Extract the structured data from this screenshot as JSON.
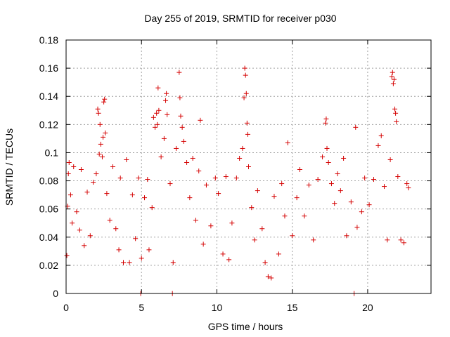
{
  "chart_data": {
    "type": "scatter",
    "title": "Day 255 of 2019, SRMTID for receiver p030",
    "xlabel": "GPS time / hours",
    "ylabel": "SRMTID / TECUs",
    "xlim": [
      0,
      24.2
    ],
    "ylim": [
      0,
      0.18
    ],
    "xticks": [
      0,
      5,
      10,
      15,
      20
    ],
    "xtick_labels": [
      "0",
      "5",
      "10",
      "15",
      "20"
    ],
    "yticks": [
      0,
      0.02,
      0.04,
      0.06,
      0.08,
      0.1,
      0.12,
      0.14,
      0.16,
      0.18
    ],
    "ytick_labels": [
      "0",
      "0.02",
      "0.04",
      "0.06",
      "0.08",
      "0.1",
      "0.12",
      "0.14",
      "0.16",
      "0.18"
    ],
    "grid": true,
    "marker": "+",
    "marker_color": "#d40000",
    "series": [
      {
        "name": "SRMTID",
        "points": [
          [
            0.05,
            0.027
          ],
          [
            0.1,
            0.062
          ],
          [
            0.15,
            0.085
          ],
          [
            0.2,
            0.093
          ],
          [
            0.3,
            0.07
          ],
          [
            0.4,
            0.05
          ],
          [
            0.5,
            0.09
          ],
          [
            0.7,
            0.058
          ],
          [
            0.9,
            0.045
          ],
          [
            1.0,
            0.088
          ],
          [
            1.2,
            0.034
          ],
          [
            1.4,
            0.072
          ],
          [
            1.6,
            0.041
          ],
          [
            1.8,
            0.079
          ],
          [
            2.0,
            0.085
          ],
          [
            2.1,
            0.131
          ],
          [
            2.15,
            0.128
          ],
          [
            2.2,
            0.099
          ],
          [
            2.25,
            0.12
          ],
          [
            2.3,
            0.106
          ],
          [
            2.4,
            0.097
          ],
          [
            2.45,
            0.111
          ],
          [
            2.5,
            0.136
          ],
          [
            2.55,
            0.138
          ],
          [
            2.6,
            0.114
          ],
          [
            2.7,
            0.071
          ],
          [
            2.9,
            0.052
          ],
          [
            3.1,
            0.09
          ],
          [
            3.3,
            0.046
          ],
          [
            3.5,
            0.031
          ],
          [
            3.6,
            0.082
          ],
          [
            3.8,
            0.022
          ],
          [
            4.0,
            0.095
          ],
          [
            4.2,
            0.022
          ],
          [
            4.4,
            0.07
          ],
          [
            4.6,
            0.039
          ],
          [
            4.8,
            0.082
          ],
          [
            4.95,
            0.0
          ],
          [
            5.0,
            0.025
          ],
          [
            5.2,
            0.068
          ],
          [
            5.4,
            0.081
          ],
          [
            5.5,
            0.031
          ],
          [
            5.7,
            0.061
          ],
          [
            5.8,
            0.125
          ],
          [
            5.9,
            0.118
          ],
          [
            6.0,
            0.128
          ],
          [
            6.05,
            0.12
          ],
          [
            6.1,
            0.146
          ],
          [
            6.15,
            0.13
          ],
          [
            6.3,
            0.097
          ],
          [
            6.5,
            0.11
          ],
          [
            6.6,
            0.137
          ],
          [
            6.65,
            0.142
          ],
          [
            6.7,
            0.127
          ],
          [
            6.9,
            0.078
          ],
          [
            7.05,
            0.0
          ],
          [
            7.1,
            0.022
          ],
          [
            7.3,
            0.103
          ],
          [
            7.5,
            0.157
          ],
          [
            7.55,
            0.139
          ],
          [
            7.6,
            0.126
          ],
          [
            7.7,
            0.118
          ],
          [
            7.8,
            0.108
          ],
          [
            8.0,
            0.093
          ],
          [
            8.2,
            0.068
          ],
          [
            8.4,
            0.096
          ],
          [
            8.6,
            0.052
          ],
          [
            8.8,
            0.087
          ],
          [
            8.9,
            0.123
          ],
          [
            9.1,
            0.035
          ],
          [
            9.3,
            0.077
          ],
          [
            9.6,
            0.048
          ],
          [
            9.9,
            0.082
          ],
          [
            10.1,
            0.071
          ],
          [
            10.4,
            0.028
          ],
          [
            10.6,
            0.083
          ],
          [
            10.8,
            0.024
          ],
          [
            11.0,
            0.05
          ],
          [
            11.3,
            0.082
          ],
          [
            11.5,
            0.096
          ],
          [
            11.7,
            0.103
          ],
          [
            11.8,
            0.139
          ],
          [
            11.85,
            0.16
          ],
          [
            11.9,
            0.155
          ],
          [
            11.95,
            0.142
          ],
          [
            12.0,
            0.121
          ],
          [
            12.05,
            0.113
          ],
          [
            12.1,
            0.09
          ],
          [
            12.3,
            0.061
          ],
          [
            12.5,
            0.038
          ],
          [
            12.7,
            0.073
          ],
          [
            13.0,
            0.046
          ],
          [
            13.2,
            0.022
          ],
          [
            13.4,
            0.012
          ],
          [
            13.6,
            0.011
          ],
          [
            13.8,
            0.069
          ],
          [
            14.1,
            0.028
          ],
          [
            14.3,
            0.078
          ],
          [
            14.5,
            0.055
          ],
          [
            14.7,
            0.107
          ],
          [
            15.0,
            0.041
          ],
          [
            15.3,
            0.068
          ],
          [
            15.5,
            0.088
          ],
          [
            15.8,
            0.055
          ],
          [
            16.1,
            0.077
          ],
          [
            16.4,
            0.038
          ],
          [
            16.7,
            0.081
          ],
          [
            17.0,
            0.097
          ],
          [
            17.2,
            0.121
          ],
          [
            17.25,
            0.124
          ],
          [
            17.3,
            0.103
          ],
          [
            17.4,
            0.093
          ],
          [
            17.6,
            0.078
          ],
          [
            17.8,
            0.064
          ],
          [
            18.0,
            0.085
          ],
          [
            18.2,
            0.073
          ],
          [
            18.4,
            0.096
          ],
          [
            18.6,
            0.041
          ],
          [
            18.9,
            0.065
          ],
          [
            19.1,
            0.0
          ],
          [
            19.2,
            0.118
          ],
          [
            19.3,
            0.047
          ],
          [
            19.6,
            0.058
          ],
          [
            19.8,
            0.082
          ],
          [
            20.1,
            0.063
          ],
          [
            20.4,
            0.081
          ],
          [
            20.7,
            0.105
          ],
          [
            20.9,
            0.112
          ],
          [
            21.1,
            0.076
          ],
          [
            21.3,
            0.038
          ],
          [
            21.5,
            0.095
          ],
          [
            21.6,
            0.154
          ],
          [
            21.65,
            0.157
          ],
          [
            21.7,
            0.149
          ],
          [
            21.75,
            0.152
          ],
          [
            21.8,
            0.131
          ],
          [
            21.85,
            0.128
          ],
          [
            21.9,
            0.122
          ],
          [
            22.0,
            0.083
          ],
          [
            22.2,
            0.038
          ],
          [
            22.4,
            0.036
          ],
          [
            22.6,
            0.078
          ],
          [
            22.7,
            0.075
          ]
        ]
      }
    ]
  }
}
